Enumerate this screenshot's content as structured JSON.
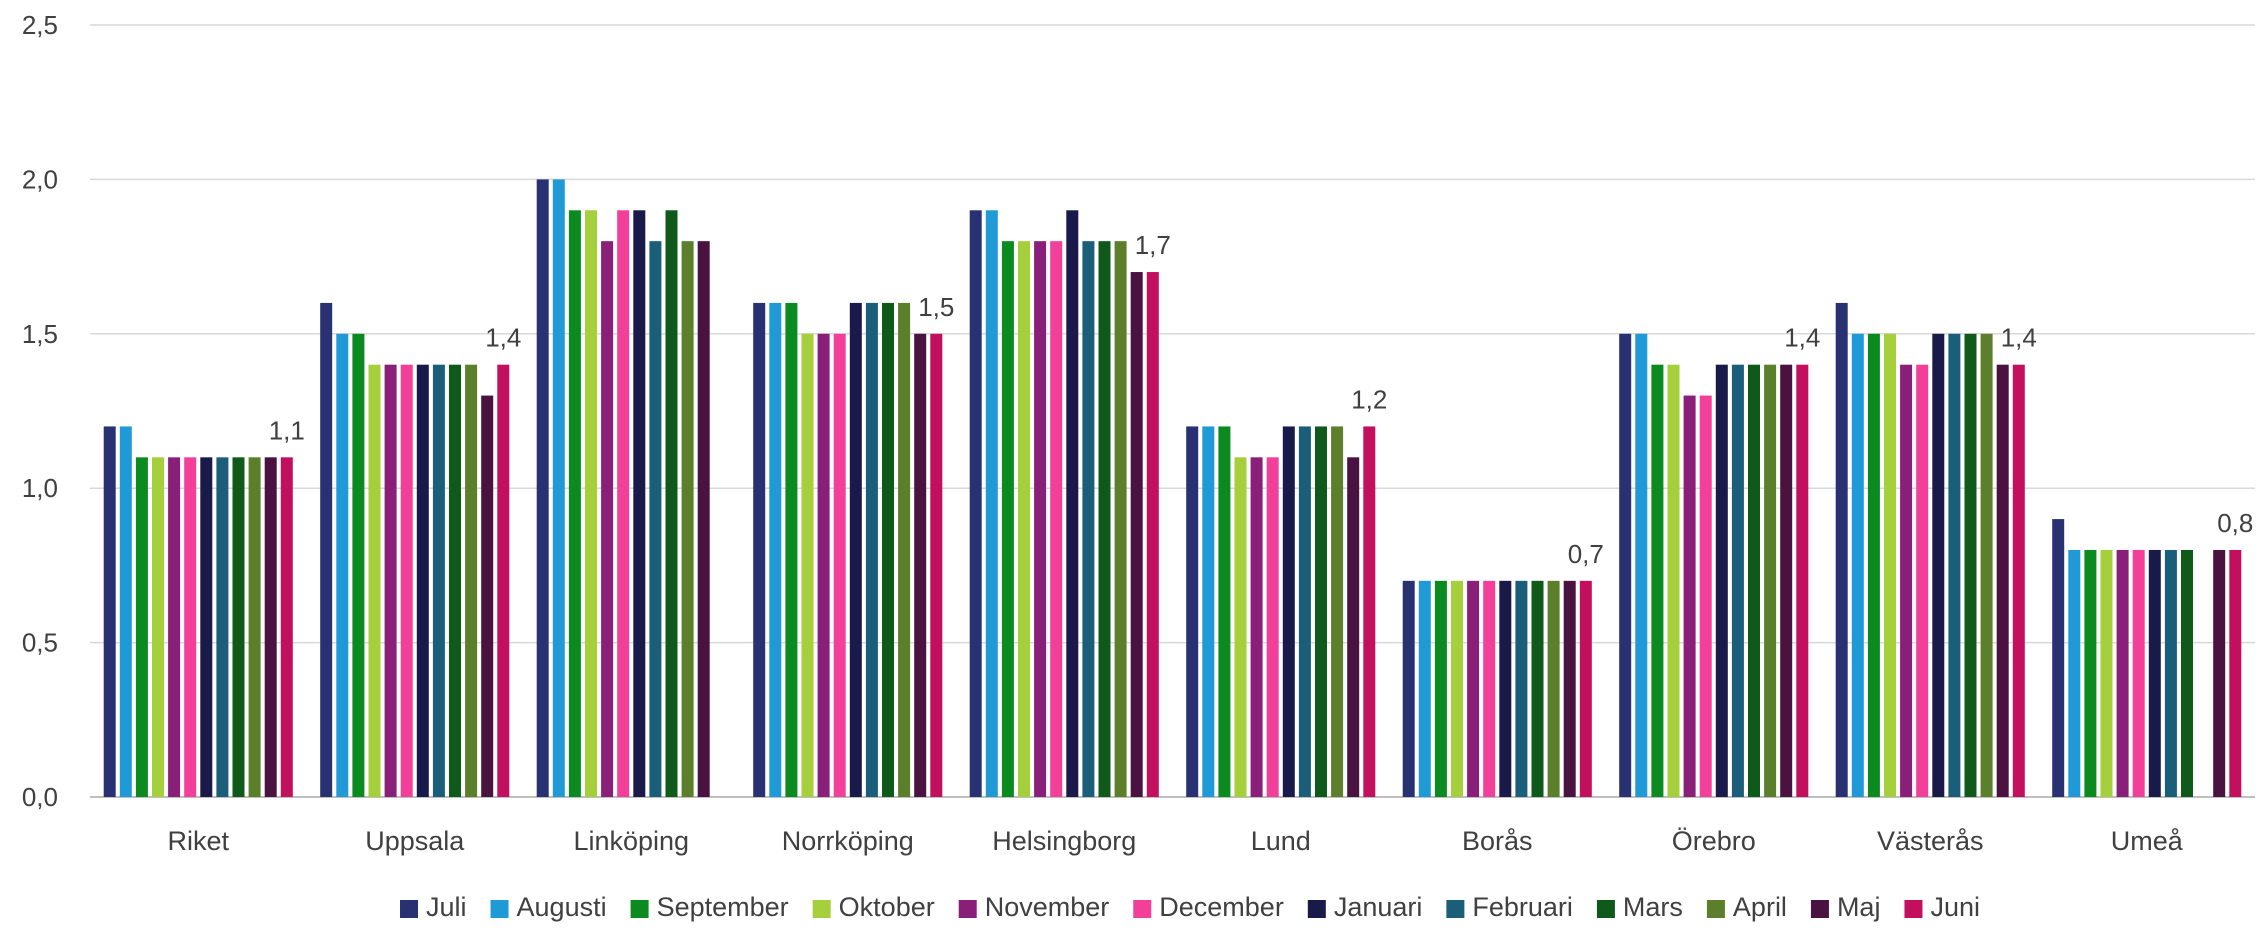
{
  "chart_data": {
    "type": "bar",
    "categories": [
      "Riket",
      "Uppsala",
      "Linköping",
      "Norrköping",
      "Helsingborg",
      "Lund",
      "Borås",
      "Örebro",
      "Västerås",
      "Umeå"
    ],
    "ylim": [
      0,
      2.5
    ],
    "yticks": [
      "0,0",
      "0,5",
      "1,0",
      "1,5",
      "2,0",
      "2,5"
    ],
    "grid": true,
    "legend_position": "bottom",
    "series": [
      {
        "name": "Juli",
        "color": "#283273",
        "values": [
          1.2,
          1.6,
          2.0,
          1.6,
          1.9,
          1.2,
          0.7,
          1.5,
          1.6,
          0.9
        ]
      },
      {
        "name": "Augusti",
        "color": "#1f9ad6",
        "values": [
          1.2,
          1.5,
          2.0,
          1.6,
          1.9,
          1.2,
          0.7,
          1.5,
          1.5,
          0.8
        ]
      },
      {
        "name": "September",
        "color": "#0a8a1f",
        "values": [
          1.1,
          1.5,
          1.9,
          1.6,
          1.8,
          1.2,
          0.7,
          1.4,
          1.5,
          0.8
        ]
      },
      {
        "name": "Oktober",
        "color": "#a6cf3c",
        "values": [
          1.1,
          1.4,
          1.9,
          1.5,
          1.8,
          1.1,
          0.7,
          1.4,
          1.5,
          0.8
        ]
      },
      {
        "name": "November",
        "color": "#8a1f7a",
        "values": [
          1.1,
          1.4,
          1.8,
          1.5,
          1.8,
          1.1,
          0.7,
          1.3,
          1.4,
          0.8
        ]
      },
      {
        "name": "December",
        "color": "#f23f9a",
        "values": [
          1.1,
          1.4,
          1.9,
          1.5,
          1.8,
          1.1,
          0.7,
          1.3,
          1.4,
          0.8
        ]
      },
      {
        "name": "Januari",
        "color": "#1a1a4a",
        "values": [
          1.1,
          1.4,
          1.9,
          1.6,
          1.9,
          1.2,
          0.7,
          1.4,
          1.5,
          0.8
        ]
      },
      {
        "name": "Februari",
        "color": "#1a5e7a",
        "values": [
          1.1,
          1.4,
          1.8,
          1.6,
          1.8,
          1.2,
          0.7,
          1.4,
          1.5,
          0.8
        ]
      },
      {
        "name": "Mars",
        "color": "#0f5a1a",
        "values": [
          1.1,
          1.4,
          1.9,
          1.6,
          1.8,
          1.2,
          0.7,
          1.4,
          1.5,
          0.8
        ]
      },
      {
        "name": "April",
        "color": "#5b7f2a",
        "values": [
          1.1,
          1.4,
          1.8,
          1.6,
          1.8,
          1.2,
          0.7,
          1.4,
          1.5,
          null
        ]
      },
      {
        "name": "Maj",
        "color": "#4a1240",
        "values": [
          1.1,
          1.3,
          1.8,
          1.5,
          1.7,
          1.1,
          0.7,
          1.4,
          1.4,
          0.8
        ]
      },
      {
        "name": "Juni",
        "color": "#c2105e",
        "values": [
          1.1,
          1.4,
          null,
          1.5,
          1.7,
          1.2,
          0.7,
          1.4,
          1.4,
          0.8
        ]
      }
    ],
    "data_labels": [
      "1,1",
      "1,4",
      "",
      "1,5",
      "1,7",
      "1,2",
      "0,7",
      "1,4",
      "1,4",
      "0,8"
    ]
  }
}
